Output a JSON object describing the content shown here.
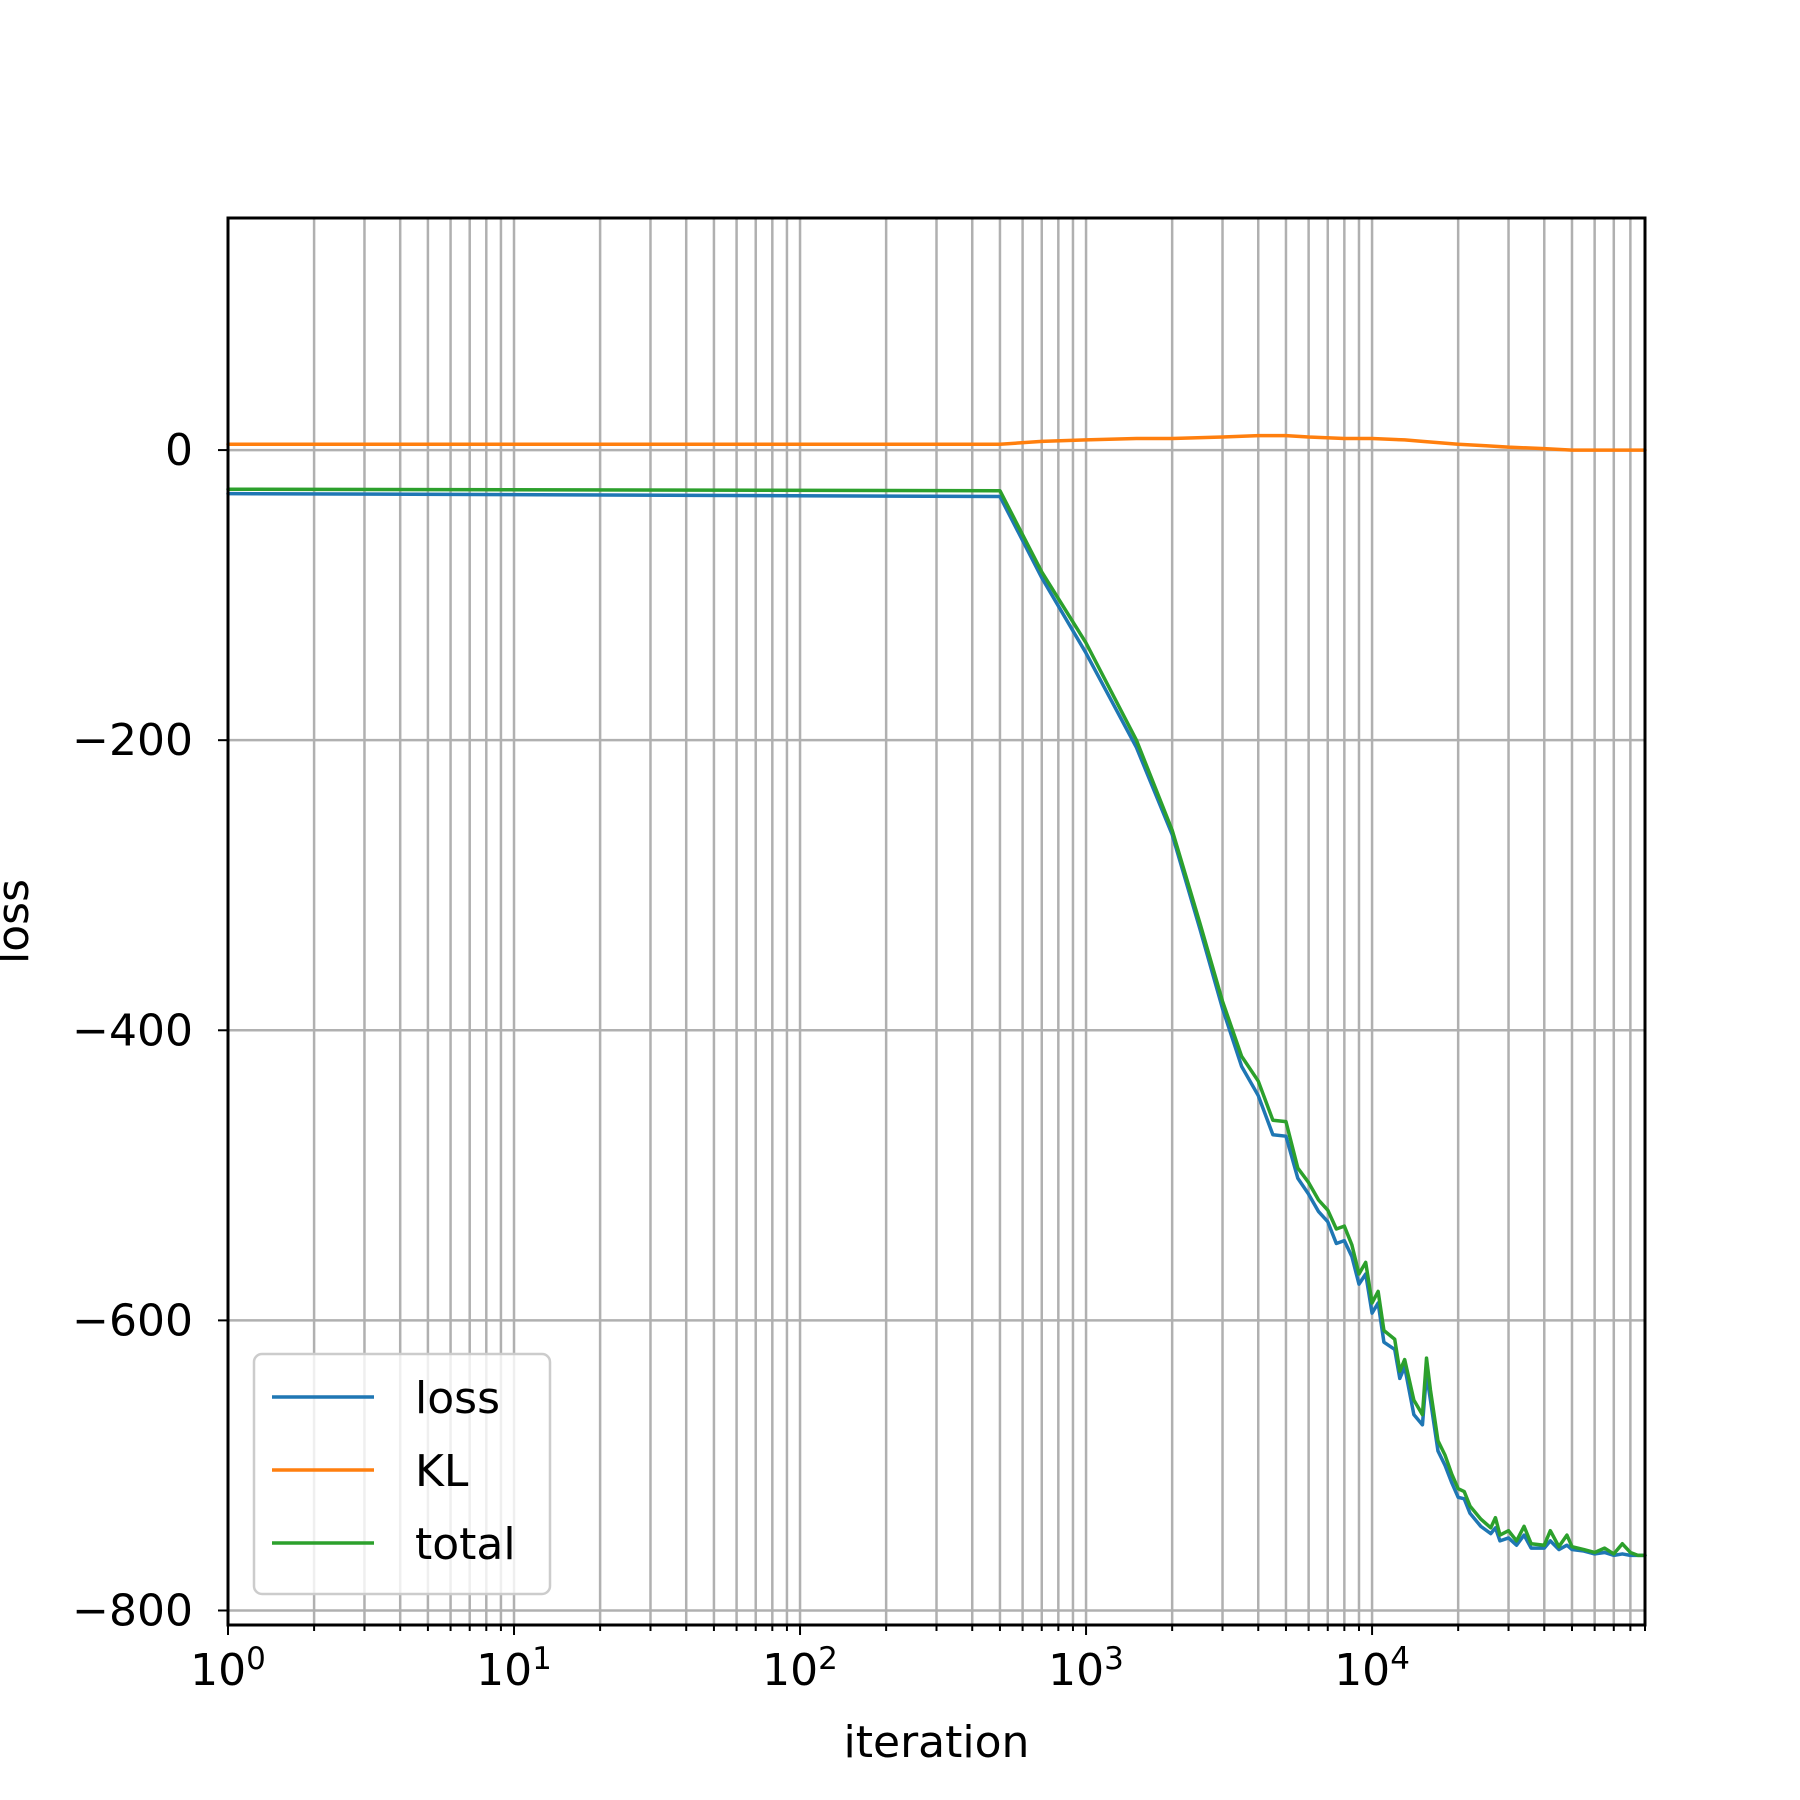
{
  "chart_data": {
    "type": "line",
    "xlabel": "iteration",
    "ylabel": "loss",
    "xscale": "log",
    "xlim": [
      1,
      90000
    ],
    "ylim": [
      -810,
      160
    ],
    "grid": true,
    "grid_which": "both",
    "legend_position": "lower-left",
    "x_tick_labels": [
      {
        "value": 1,
        "base": "10",
        "exp": "0"
      },
      {
        "value": 10,
        "base": "10",
        "exp": "1"
      },
      {
        "value": 100,
        "base": "10",
        "exp": "2"
      },
      {
        "value": 1000,
        "base": "10",
        "exp": "3"
      },
      {
        "value": 10000,
        "base": "10",
        "exp": "4"
      }
    ],
    "y_ticks": [
      0,
      -200,
      -400,
      -600,
      -800
    ],
    "y_tick_labels": [
      "0",
      "−200",
      "−400",
      "−600",
      "−800"
    ],
    "series": [
      {
        "name": "loss",
        "color": "#1f77b4",
        "points": [
          [
            1,
            -30
          ],
          [
            500,
            -32
          ],
          [
            700,
            -88
          ],
          [
            1000,
            -140
          ],
          [
            1500,
            -205
          ],
          [
            2000,
            -265
          ],
          [
            2500,
            -330
          ],
          [
            3000,
            -385
          ],
          [
            3500,
            -425
          ],
          [
            4000,
            -445
          ],
          [
            4500,
            -472
          ],
          [
            5000,
            -473
          ],
          [
            5500,
            -502
          ],
          [
            6000,
            -513
          ],
          [
            6500,
            -525
          ],
          [
            7000,
            -532
          ],
          [
            7500,
            -547
          ],
          [
            8000,
            -545
          ],
          [
            8500,
            -556
          ],
          [
            9000,
            -575
          ],
          [
            9500,
            -568
          ],
          [
            10000,
            -595
          ],
          [
            10500,
            -588
          ],
          [
            11000,
            -615
          ],
          [
            12000,
            -620
          ],
          [
            12500,
            -640
          ],
          [
            13000,
            -632
          ],
          [
            14000,
            -665
          ],
          [
            15000,
            -672
          ],
          [
            15500,
            -637
          ],
          [
            16000,
            -655
          ],
          [
            17000,
            -690
          ],
          [
            18000,
            -700
          ],
          [
            19000,
            -712
          ],
          [
            20000,
            -722
          ],
          [
            21000,
            -723
          ],
          [
            22000,
            -733
          ],
          [
            24000,
            -742
          ],
          [
            26000,
            -747
          ],
          [
            27000,
            -743
          ],
          [
            28000,
            -752
          ],
          [
            30000,
            -750
          ],
          [
            32000,
            -755
          ],
          [
            34000,
            -748
          ],
          [
            36000,
            -757
          ],
          [
            40000,
            -757
          ],
          [
            42000,
            -752
          ],
          [
            45000,
            -758
          ],
          [
            48000,
            -755
          ],
          [
            50000,
            -758
          ],
          [
            55000,
            -759
          ],
          [
            60000,
            -761
          ],
          [
            65000,
            -760
          ],
          [
            70000,
            -762
          ],
          [
            75000,
            -761
          ],
          [
            80000,
            -762
          ],
          [
            85000,
            -762
          ],
          [
            90000,
            -762
          ]
        ]
      },
      {
        "name": "KL",
        "color": "#ff7f0e",
        "points": [
          [
            1,
            4
          ],
          [
            500,
            4
          ],
          [
            700,
            6
          ],
          [
            1000,
            7
          ],
          [
            1500,
            8
          ],
          [
            2000,
            8
          ],
          [
            3000,
            9
          ],
          [
            4000,
            10
          ],
          [
            5000,
            10
          ],
          [
            6000,
            9
          ],
          [
            8000,
            8
          ],
          [
            10000,
            8
          ],
          [
            13000,
            7
          ],
          [
            15000,
            6
          ],
          [
            20000,
            4
          ],
          [
            25000,
            3
          ],
          [
            30000,
            2
          ],
          [
            40000,
            1
          ],
          [
            50000,
            0
          ],
          [
            70000,
            0
          ],
          [
            90000,
            0
          ]
        ]
      },
      {
        "name": "total",
        "color": "#2ca02c",
        "points": [
          [
            1,
            -27
          ],
          [
            500,
            -28
          ],
          [
            700,
            -84
          ],
          [
            1000,
            -133
          ],
          [
            1500,
            -200
          ],
          [
            2000,
            -262
          ],
          [
            2500,
            -326
          ],
          [
            3000,
            -380
          ],
          [
            3500,
            -418
          ],
          [
            4000,
            -435
          ],
          [
            4500,
            -462
          ],
          [
            5000,
            -463
          ],
          [
            5500,
            -495
          ],
          [
            6000,
            -505
          ],
          [
            6500,
            -517
          ],
          [
            7000,
            -524
          ],
          [
            7500,
            -537
          ],
          [
            8000,
            -535
          ],
          [
            8500,
            -548
          ],
          [
            9000,
            -568
          ],
          [
            9500,
            -560
          ],
          [
            10000,
            -588
          ],
          [
            10500,
            -580
          ],
          [
            11000,
            -607
          ],
          [
            12000,
            -613
          ],
          [
            12500,
            -635
          ],
          [
            13000,
            -627
          ],
          [
            14000,
            -655
          ],
          [
            15000,
            -665
          ],
          [
            15500,
            -626
          ],
          [
            16000,
            -648
          ],
          [
            17000,
            -683
          ],
          [
            18000,
            -693
          ],
          [
            19000,
            -706
          ],
          [
            20000,
            -716
          ],
          [
            21000,
            -718
          ],
          [
            22000,
            -728
          ],
          [
            24000,
            -737
          ],
          [
            26000,
            -743
          ],
          [
            27000,
            -736
          ],
          [
            28000,
            -748
          ],
          [
            30000,
            -745
          ],
          [
            32000,
            -752
          ],
          [
            34000,
            -742
          ],
          [
            36000,
            -754
          ],
          [
            40000,
            -755
          ],
          [
            42000,
            -745
          ],
          [
            45000,
            -756
          ],
          [
            48000,
            -748
          ],
          [
            50000,
            -756
          ],
          [
            55000,
            -758
          ],
          [
            60000,
            -760
          ],
          [
            65000,
            -757
          ],
          [
            70000,
            -761
          ],
          [
            75000,
            -754
          ],
          [
            80000,
            -760
          ],
          [
            85000,
            -762
          ],
          [
            90000,
            -762
          ]
        ]
      }
    ]
  }
}
